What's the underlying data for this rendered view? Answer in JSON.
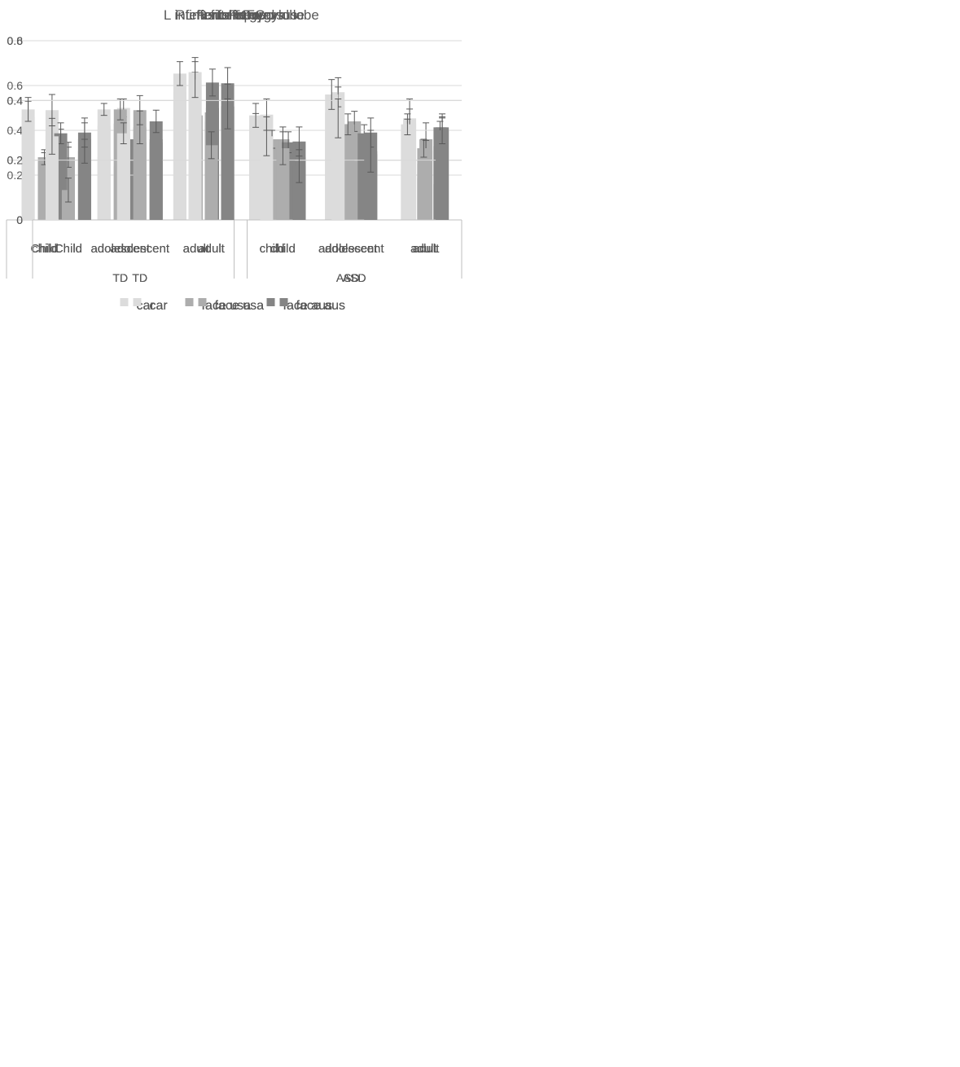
{
  "legend_labels": [
    "car",
    "face usa",
    "face aus"
  ],
  "colors": {
    "car": "#dcdcdc",
    "face usa": "#adadad",
    "face aus": "#858585"
  },
  "chart_data": [
    {
      "type": "bar",
      "title": "L IFG",
      "groups": [
        "TD",
        "ASD"
      ],
      "categories": [
        "child",
        "adolescent",
        "adult",
        "child",
        "adolescent",
        "adult"
      ],
      "series": [
        {
          "name": "car",
          "values": [
            0.23,
            0.21,
            0.34,
            0.18,
            0.28,
            0.17
          ],
          "errors": [
            0.04,
            0.03,
            0.05,
            0.03,
            0.045,
            0.03
          ]
        },
        {
          "name": "face usa",
          "values": [
            0.13,
            0.18,
            0.22,
            0.14,
            0.2,
            0.14
          ],
          "errors": [
            0.04,
            0.04,
            0.03,
            0.03,
            0.05,
            0.03
          ]
        },
        {
          "name": "face aus",
          "values": [
            0.21,
            0.19,
            0.24,
            0.11,
            0.14,
            0.12
          ],
          "errors": [
            0.035,
            0.035,
            0.035,
            0.03,
            0.04,
            0.03
          ]
        }
      ],
      "ylim": [
        0,
        0.6
      ],
      "ytick_labels": [],
      "grid": true,
      "legend": "bottom"
    },
    {
      "type": "bar",
      "title": "R IFG",
      "groups": [
        "TD",
        "ASD"
      ],
      "categories": [
        "Child",
        "adolescent",
        "adult",
        "child",
        "adolescent",
        "adult"
      ],
      "series": [
        {
          "name": "car",
          "values": [
            0.3,
            0.32,
            0.44,
            null,
            0.4,
            0.34
          ],
          "errors": [
            0.06,
            0.045,
            0.055,
            null,
            0.045,
            0.065
          ]
        },
        {
          "name": "face usa",
          "values": [
            0.21,
            0.26,
            0.33,
            null,
            0.27,
            0.27
          ],
          "errors": [
            0.05,
            0.04,
            0.04,
            null,
            0.04,
            0.055
          ]
        },
        {
          "name": "face aus",
          "values": [
            0.27,
            0.26,
            0.38,
            0.21,
            0.22,
            0.31
          ],
          "errors": [
            0.055,
            0.035,
            0.055,
            0.05,
            0.045,
            0.045
          ]
        }
      ],
      "ylim": [
        0,
        0.6
      ],
      "ytick_labels": [
        "0",
        "0.2",
        "0.4",
        "0.6"
      ],
      "grid": true,
      "legend": "bottom"
    },
    {
      "type": "bar",
      "title": "L fusiform gyrus",
      "groups": [
        "TD",
        "ASD"
      ],
      "categories": [
        "Child",
        "adolescent",
        "adult",
        "child",
        "adolescent",
        "adult"
      ],
      "series": [
        {
          "name": "car",
          "values": [
            0.46,
            0.42,
            0.57,
            0.42,
            0.48,
            0.4
          ],
          "errors": [
            0.07,
            0.04,
            0.06,
            0.055,
            0.065,
            0.05
          ]
        },
        {
          "name": "face usa",
          "values": [
            0.26,
            0.43,
            0.39,
            0.27,
            0.38,
            0.25
          ],
          "errors": [
            0.04,
            0.06,
            0.04,
            0.04,
            0.045,
            0.03
          ]
        },
        {
          "name": "face aus",
          "values": [
            0.35,
            0.36,
            0.5,
            0.28,
            0.36,
            0.33
          ],
          "errors": [
            0.055,
            0.04,
            0.06,
            0.055,
            0.065,
            0.03
          ]
        }
      ],
      "ylim": [
        0,
        0.8
      ],
      "ytick_labels": [],
      "grid": true,
      "legend": "bottom"
    },
    {
      "type": "bar",
      "title": "R fusiform gyrus",
      "groups": [
        "TD",
        "ASD"
      ],
      "categories": [
        "Child",
        "adolescent",
        "adult",
        "child",
        "adolescent",
        "adult"
      ],
      "series": [
        {
          "name": "car",
          "values": [
            0.49,
            0.5,
            0.66,
            0.47,
            0.57,
            0.43
          ],
          "errors": [
            0.07,
            0.04,
            0.065,
            0.07,
            0.065,
            0.065
          ]
        },
        {
          "name": "face usa",
          "values": [
            0.28,
            0.49,
            0.48,
            0.36,
            0.44,
            0.31
          ],
          "errors": [
            0.045,
            0.065,
            0.055,
            0.055,
            0.045,
            0.045
          ]
        },
        {
          "name": "face aus",
          "values": [
            0.39,
            0.44,
            0.61,
            0.35,
            0.39,
            0.41
          ],
          "errors": [
            0.065,
            0.05,
            0.07,
            0.065,
            0.065,
            0.045
          ]
        }
      ],
      "ylim": [
        0,
        0.8
      ],
      "ytick_labels": [
        "0",
        "0.2",
        "0.4",
        "0.6",
        "0.8"
      ],
      "grid": true,
      "legend": "bottom"
    },
    {
      "type": "bar",
      "title": "L inferior temporal lobe",
      "groups": [
        "TD",
        "ASD"
      ],
      "categories": [
        "Child",
        "adolescent",
        "adult",
        "child",
        "adolescent",
        "adult"
      ],
      "series": [
        {
          "name": "car",
          "values": [
            0.37,
            0.37,
            0.49,
            0.35,
            0.42,
            0.32
          ],
          "errors": [
            0.04,
            0.02,
            0.04,
            0.04,
            0.05,
            0.035
          ]
        },
        {
          "name": "face usa",
          "values": [
            0.21,
            0.37,
            0.35,
            0.27,
            0.32,
            0.24
          ],
          "errors": [
            0.025,
            0.035,
            0.035,
            0.03,
            0.035,
            0.03
          ]
        },
        {
          "name": "face aus",
          "values": [
            0.29,
            null,
            0.46,
            0.26,
            0.29,
            0.31
          ],
          "errors": [
            0.035,
            null,
            0.045,
            0.035,
            null,
            0.02
          ]
        }
      ],
      "ylim": [
        0,
        0.6
      ],
      "ytick_labels": [],
      "grid": true,
      "legend": "bottom"
    },
    {
      "type": "bar",
      "title": "R inferior temporal lobe",
      "groups": [
        "TD",
        "ASD"
      ],
      "categories": [
        "Child",
        "adolescent",
        "adult",
        "child",
        "adolescent",
        "adult"
      ],
      "series": [
        {
          "name": "car",
          "values": [
            0.28,
            0.29,
            0.47,
            0.28,
            0.34,
            null
          ],
          "errors": [
            0.06,
            0.035,
            0.06,
            0.065,
            0.065,
            null
          ]
        },
        {
          "name": "face usa",
          "values": [
            0.1,
            0.31,
            0.25,
            0.24,
            null,
            null
          ],
          "errors": [
            0.04,
            0.055,
            0.045,
            0.055,
            null,
            null
          ]
        },
        {
          "name": "face aus",
          "values": [
            0.23,
            0.27,
            0.38,
            0.18,
            0.23,
            0.3
          ],
          "errors": [
            0.04,
            null,
            0.075,
            0.055,
            0.07,
            0.045
          ]
        }
      ],
      "ylim": [
        0,
        0.6
      ],
      "ytick_labels": [
        "0",
        "0.2",
        "0.4",
        "0.6"
      ],
      "grid": true,
      "legend": "bottom"
    }
  ]
}
